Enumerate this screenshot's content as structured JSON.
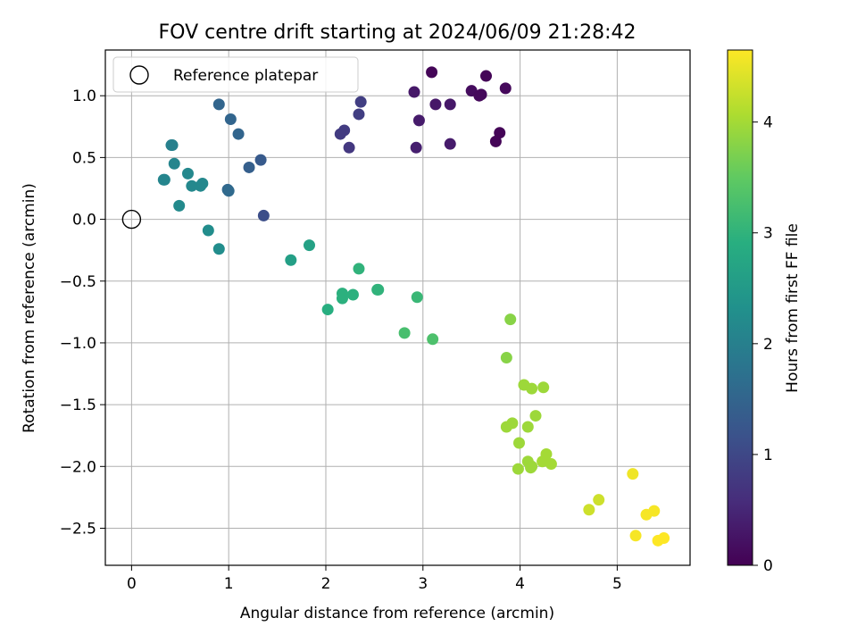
{
  "chart_data": {
    "type": "scatter",
    "title": "FOV centre drift starting at 2024/06/09 21:28:42",
    "xlabel": "Angular distance from reference (arcmin)",
    "ylabel": "Rotation from reference (arcmin)",
    "xlim": [
      -0.27,
      5.75
    ],
    "ylim": [
      -2.8,
      1.37
    ],
    "xticks": [
      0,
      1,
      2,
      3,
      4,
      5
    ],
    "xtick_labels": [
      "0",
      "1",
      "2",
      "3",
      "4",
      "5"
    ],
    "yticks": [
      -2.5,
      -2.0,
      -1.5,
      -1.0,
      -0.5,
      0.0,
      0.5,
      1.0
    ],
    "ytick_labels": [
      "−2.5",
      "−2.0",
      "−1.5",
      "−1.0",
      "−0.5",
      "0.0",
      "0.5",
      "1.0"
    ],
    "grid": true,
    "legend": {
      "placement": "top-left",
      "entries": [
        "Reference platepar"
      ]
    },
    "reference_point": {
      "x": 0.0,
      "y": 0.0
    },
    "colorbar": {
      "label": "Hours from first FF file",
      "colormap": "viridis",
      "range": [
        0,
        4.65
      ],
      "ticks": [
        0,
        1,
        2,
        3,
        4
      ],
      "tick_labels": [
        "0",
        "1",
        "2",
        "3",
        "4"
      ]
    },
    "points": [
      {
        "x": 3.09,
        "y": 1.19,
        "c": 0.05
      },
      {
        "x": 3.65,
        "y": 1.16,
        "c": 0.05
      },
      {
        "x": 3.85,
        "y": 1.06,
        "c": 0.1
      },
      {
        "x": 3.5,
        "y": 1.04,
        "c": 0.15
      },
      {
        "x": 3.6,
        "y": 1.01,
        "c": 0.1
      },
      {
        "x": 3.58,
        "y": 1.0,
        "c": 0.1
      },
      {
        "x": 3.79,
        "y": 0.7,
        "c": 0.05
      },
      {
        "x": 3.75,
        "y": 0.63,
        "c": 0.05
      },
      {
        "x": 2.91,
        "y": 1.03,
        "c": 0.3
      },
      {
        "x": 3.13,
        "y": 0.93,
        "c": 0.3
      },
      {
        "x": 3.28,
        "y": 0.93,
        "c": 0.3
      },
      {
        "x": 2.96,
        "y": 0.8,
        "c": 0.35
      },
      {
        "x": 3.28,
        "y": 0.61,
        "c": 0.35
      },
      {
        "x": 2.93,
        "y": 0.58,
        "c": 0.4
      },
      {
        "x": 2.36,
        "y": 0.95,
        "c": 0.85
      },
      {
        "x": 2.34,
        "y": 0.85,
        "c": 0.85
      },
      {
        "x": 2.19,
        "y": 0.72,
        "c": 0.8
      },
      {
        "x": 2.15,
        "y": 0.69,
        "c": 0.8
      },
      {
        "x": 2.24,
        "y": 0.58,
        "c": 0.75
      },
      {
        "x": 1.36,
        "y": 0.03,
        "c": 1.1
      },
      {
        "x": 1.33,
        "y": 0.48,
        "c": 1.3
      },
      {
        "x": 1.21,
        "y": 0.42,
        "c": 1.4
      },
      {
        "x": 0.9,
        "y": 0.93,
        "c": 1.5
      },
      {
        "x": 1.02,
        "y": 0.81,
        "c": 1.5
      },
      {
        "x": 1.1,
        "y": 0.69,
        "c": 1.5
      },
      {
        "x": 0.99,
        "y": 0.24,
        "c": 1.55
      },
      {
        "x": 1.0,
        "y": 0.23,
        "c": 1.6
      },
      {
        "x": 0.41,
        "y": 0.6,
        "c": 2.0
      },
      {
        "x": 0.42,
        "y": 0.6,
        "c": 2.0
      },
      {
        "x": 0.44,
        "y": 0.45,
        "c": 2.1
      },
      {
        "x": 0.34,
        "y": 0.32,
        "c": 2.1
      },
      {
        "x": 0.33,
        "y": 0.32,
        "c": 2.1
      },
      {
        "x": 0.58,
        "y": 0.37,
        "c": 2.15
      },
      {
        "x": 0.62,
        "y": 0.27,
        "c": 2.15
      },
      {
        "x": 0.71,
        "y": 0.27,
        "c": 2.15
      },
      {
        "x": 0.73,
        "y": 0.29,
        "c": 2.15
      },
      {
        "x": 0.49,
        "y": 0.11,
        "c": 2.2
      },
      {
        "x": 0.79,
        "y": -0.09,
        "c": 2.25
      },
      {
        "x": 0.9,
        "y": -0.24,
        "c": 2.25
      },
      {
        "x": 1.64,
        "y": -0.33,
        "c": 2.6
      },
      {
        "x": 1.83,
        "y": -0.21,
        "c": 2.65
      },
      {
        "x": 2.02,
        "y": -0.73,
        "c": 2.9
      },
      {
        "x": 2.17,
        "y": -0.6,
        "c": 2.95
      },
      {
        "x": 2.17,
        "y": -0.64,
        "c": 2.95
      },
      {
        "x": 2.28,
        "y": -0.61,
        "c": 2.95
      },
      {
        "x": 2.34,
        "y": -0.4,
        "c": 3.0
      },
      {
        "x": 2.53,
        "y": -0.57,
        "c": 3.0
      },
      {
        "x": 2.54,
        "y": -0.57,
        "c": 3.0
      },
      {
        "x": 2.94,
        "y": -0.63,
        "c": 3.1
      },
      {
        "x": 2.81,
        "y": -0.92,
        "c": 3.25
      },
      {
        "x": 3.1,
        "y": -0.97,
        "c": 3.3
      },
      {
        "x": 3.9,
        "y": -0.81,
        "c": 3.8
      },
      {
        "x": 3.86,
        "y": -1.12,
        "c": 3.8
      },
      {
        "x": 4.04,
        "y": -1.34,
        "c": 3.95
      },
      {
        "x": 4.12,
        "y": -1.37,
        "c": 3.95
      },
      {
        "x": 4.24,
        "y": -1.36,
        "c": 3.95
      },
      {
        "x": 4.16,
        "y": -1.59,
        "c": 3.95
      },
      {
        "x": 3.86,
        "y": -1.68,
        "c": 3.95
      },
      {
        "x": 3.92,
        "y": -1.65,
        "c": 3.95
      },
      {
        "x": 4.08,
        "y": -1.68,
        "c": 3.95
      },
      {
        "x": 3.99,
        "y": -1.81,
        "c": 3.95
      },
      {
        "x": 4.08,
        "y": -1.96,
        "c": 3.95
      },
      {
        "x": 4.12,
        "y": -2.0,
        "c": 3.95
      },
      {
        "x": 4.11,
        "y": -2.01,
        "c": 3.95
      },
      {
        "x": 3.98,
        "y": -2.02,
        "c": 3.95
      },
      {
        "x": 4.23,
        "y": -1.96,
        "c": 4.0
      },
      {
        "x": 4.27,
        "y": -1.9,
        "c": 4.0
      },
      {
        "x": 4.32,
        "y": -1.98,
        "c": 4.0
      },
      {
        "x": 4.81,
        "y": -2.27,
        "c": 4.3
      },
      {
        "x": 4.71,
        "y": -2.35,
        "c": 4.3
      },
      {
        "x": 5.16,
        "y": -2.06,
        "c": 4.55
      },
      {
        "x": 5.19,
        "y": -2.56,
        "c": 4.6
      },
      {
        "x": 5.3,
        "y": -2.39,
        "c": 4.6
      },
      {
        "x": 5.38,
        "y": -2.36,
        "c": 4.6
      },
      {
        "x": 5.42,
        "y": -2.6,
        "c": 4.65
      },
      {
        "x": 5.48,
        "y": -2.58,
        "c": 4.65
      }
    ]
  }
}
